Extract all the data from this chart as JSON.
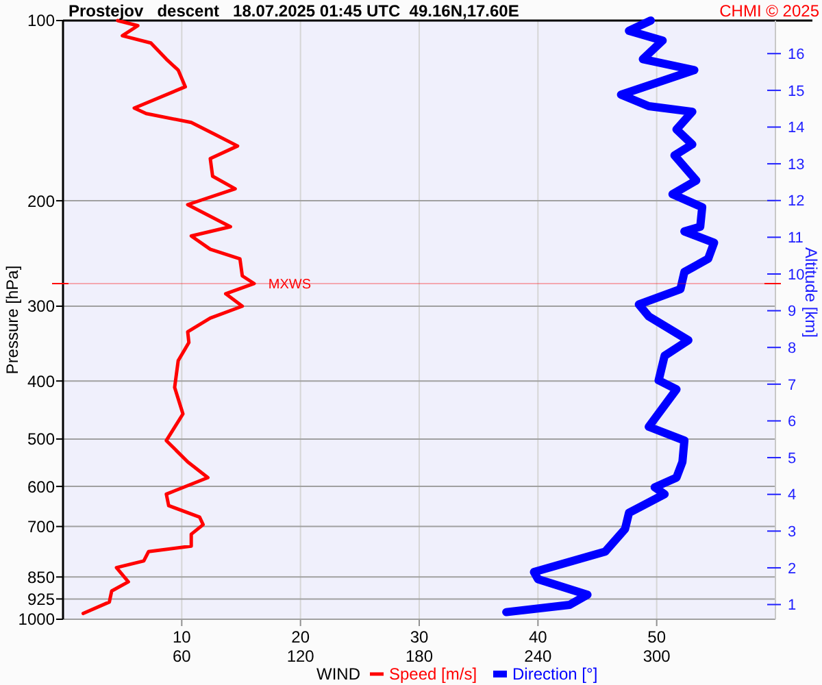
{
  "chart_data": {
    "type": "line",
    "title": "Prostejov   descent   18.07.2025 01:45 UTC  49.16N,17.60E",
    "xlabel": "WIND",
    "ylabel": "Pressure [hPa]",
    "y2label": "Altitude [km]",
    "annotations": [
      "CHMI © 2025"
    ],
    "log": "y",
    "grid": true,
    "legend": "bottom",
    "orientation": "horizontal",
    "xlim": [
      0,
      60
    ],
    "xticks": [
      10,
      20,
      30,
      40,
      50
    ],
    "x2lim": [
      0,
      360
    ],
    "x2ticks": [
      60,
      120,
      180,
      240,
      300
    ],
    "ylim": [
      1000,
      100
    ],
    "yticks": [
      100,
      200,
      300,
      400,
      500,
      600,
      700,
      850,
      925,
      1000
    ],
    "y2lim": [
      0.6,
      16.9
    ],
    "y2ticks": [
      1,
      2,
      3,
      4,
      5,
      6,
      7,
      8,
      9,
      10,
      11,
      12,
      13,
      14,
      15,
      16
    ],
    "ref_lines": [
      {
        "axis": "y",
        "value": 275,
        "label": "MXWS",
        "color": "#ff0000"
      }
    ],
    "series": [
      {
        "name": "Speed [m/s]",
        "color": "#ff0000",
        "values": [
          4.6,
          6.3,
          5.0,
          7.4,
          8.7,
          9.7,
          10.3,
          6.0,
          7.0,
          10.8,
          12.8,
          14.7,
          12.4,
          12.6,
          14.5,
          10.5,
          14.1,
          10.8,
          12.4,
          14.9,
          15.1,
          16.1,
          13.7,
          15.1,
          12.4,
          10.5,
          10.6,
          9.7,
          9.4,
          10.1,
          8.7,
          10.5,
          12.2,
          8.7,
          8.9,
          11.5,
          11.8,
          10.8,
          10.8,
          7.2,
          6.8,
          4.5,
          5.5,
          4.1,
          3.9,
          1.7
        ],
        "x": [
          100,
          102,
          106,
          109,
          116,
          121,
          129,
          140,
          143,
          148,
          155,
          162,
          170,
          182,
          191,
          203,
          221,
          229,
          241,
          250,
          267,
          275,
          286,
          300,
          314,
          331,
          345,
          370,
          410,
          454,
          503,
          546,
          580,
          618,
          646,
          675,
          695,
          721,
          755,
          771,
          799,
          820,
          866,
          897,
          936,
          978
        ]
      },
      {
        "name": "Direction [°]",
        "color": "#0000ff",
        "axis": "x2",
        "values": [
          297,
          286,
          303,
          293,
          319,
          282,
          296,
          318,
          310,
          318,
          309,
          320,
          308,
          323,
          322,
          314,
          329,
          326,
          314,
          312,
          291,
          296,
          316,
          304,
          301,
          310,
          296,
          314,
          313,
          310,
          299,
          304,
          286,
          284,
          274,
          238,
          240,
          265,
          256,
          224
        ],
        "x": [
          100,
          104,
          108,
          116,
          121,
          133,
          139,
          142,
          152,
          161,
          168,
          185,
          195,
          205,
          221,
          225,
          235,
          250,
          263,
          281,
          298,
          312,
          342,
          363,
          399,
          413,
          477,
          503,
          546,
          580,
          602,
          618,
          664,
          707,
          771,
          834,
          857,
          910,
          946,
          973
        ]
      }
    ]
  }
}
